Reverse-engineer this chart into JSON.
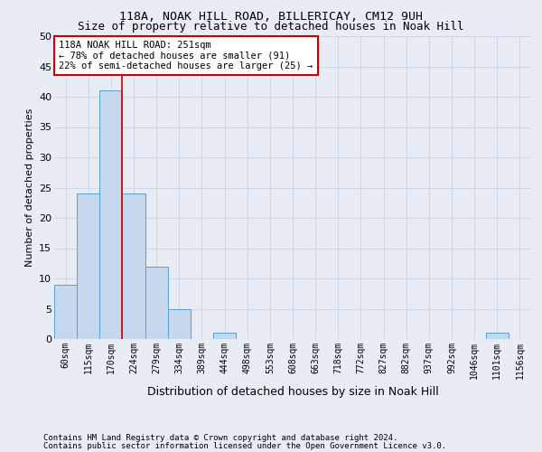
{
  "title": "118A, NOAK HILL ROAD, BILLERICAY, CM12 9UH",
  "subtitle": "Size of property relative to detached houses in Noak Hill",
  "xlabel": "Distribution of detached houses by size in Noak Hill",
  "ylabel": "Number of detached properties",
  "bin_labels": [
    "60sqm",
    "115sqm",
    "170sqm",
    "224sqm",
    "279sqm",
    "334sqm",
    "389sqm",
    "444sqm",
    "498sqm",
    "553sqm",
    "608sqm",
    "663sqm",
    "718sqm",
    "772sqm",
    "827sqm",
    "882sqm",
    "937sqm",
    "992sqm",
    "1046sqm",
    "1101sqm",
    "1156sqm"
  ],
  "bar_values": [
    9,
    24,
    41,
    24,
    12,
    5,
    0,
    1,
    0,
    0,
    0,
    0,
    0,
    0,
    0,
    0,
    0,
    0,
    0,
    1,
    0
  ],
  "bar_color": "#c5d8ed",
  "bar_edge_color": "#5a9fd4",
  "grid_color": "#d0d8e8",
  "bg_color": "#e8edf5",
  "annotation_box_text": "118A NOAK HILL ROAD: 251sqm\n← 78% of detached houses are smaller (91)\n22% of semi-detached houses are larger (25) →",
  "annotation_box_color": "#ffffff",
  "annotation_box_edge_color": "#cc0000",
  "vline_x": 3.0,
  "vline_color": "#cc0000",
  "ylim": [
    0,
    50
  ],
  "yticks": [
    0,
    5,
    10,
    15,
    20,
    25,
    30,
    35,
    40,
    45,
    50
  ],
  "footer_line1": "Contains HM Land Registry data © Crown copyright and database right 2024.",
  "footer_line2": "Contains public sector information licensed under the Open Government Licence v3.0.",
  "title_fontsize": 9.5,
  "subtitle_fontsize": 9,
  "axis_label_fontsize": 8,
  "tick_fontsize": 7,
  "footer_fontsize": 6.5,
  "annotation_fontsize": 7.5
}
